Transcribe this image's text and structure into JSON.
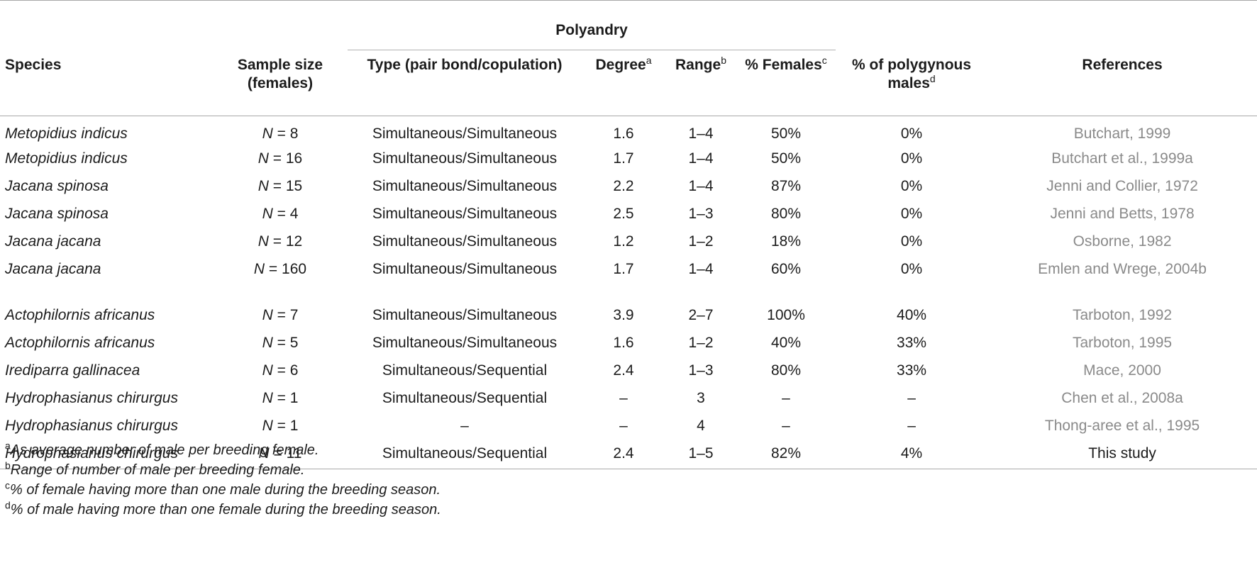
{
  "headers": {
    "polyandry": "Polyandry",
    "species": "Species",
    "sample_size": "Sample size (females)",
    "type": "Type (pair bond/copulation)",
    "degree": "Degree",
    "degree_sup": "a",
    "range": "Range",
    "range_sup": "b",
    "females": "% Females",
    "females_sup": "c",
    "polygynous": "% of polygynous males",
    "polygynous_sup": "d",
    "references": "References"
  },
  "rows": [
    {
      "species": "Metopidius indicus",
      "n": "N",
      "sample": " = 8",
      "type": "Simultaneous/Simultaneous",
      "degree": "1.6",
      "range": "1–4",
      "females": "50%",
      "polygynous": "0%",
      "ref": "Butchart, 1999"
    },
    {
      "species": "Metopidius indicus",
      "n": "N",
      "sample": " = 16",
      "type": "Simultaneous/Simultaneous",
      "degree": "1.7",
      "range": "1–4",
      "females": "50%",
      "polygynous": "0%",
      "ref": "Butchart et al., 1999a"
    },
    {
      "species": "Jacana spinosa",
      "n": "N",
      "sample": " = 15",
      "type": "Simultaneous/Simultaneous",
      "degree": "2.2",
      "range": "1–4",
      "females": "87%",
      "polygynous": "0%",
      "ref": "Jenni and Collier, 1972"
    },
    {
      "species": "Jacana spinosa",
      "n": "N",
      "sample": " = 4",
      "type": "Simultaneous/Simultaneous",
      "degree": "2.5",
      "range": "1–3",
      "females": "80%",
      "polygynous": "0%",
      "ref": "Jenni and Betts, 1978"
    },
    {
      "species": "Jacana jacana",
      "n": "N",
      "sample": " = 12",
      "type": "Simultaneous/Simultaneous",
      "degree": "1.2",
      "range": "1–2",
      "females": "18%",
      "polygynous": "0%",
      "ref": "Osborne, 1982"
    },
    {
      "species": "Jacana jacana",
      "n": "N",
      "sample": " = 160",
      "type": "Simultaneous/Simultaneous",
      "degree": "1.7",
      "range": "1–4",
      "females": "60%",
      "polygynous": "0%",
      "ref": "Emlen and Wrege, 2004b"
    },
    {
      "species": "Actophilornis africanus",
      "n": "N",
      "sample": " = 7",
      "type": "Simultaneous/Simultaneous",
      "degree": "3.9",
      "range": "2–7",
      "females": "100%",
      "polygynous": "40%",
      "ref": "Tarboton, 1992"
    },
    {
      "species": "Actophilornis africanus",
      "n": "N",
      "sample": " = 5",
      "type": "Simultaneous/Simultaneous",
      "degree": "1.6",
      "range": "1–2",
      "females": "40%",
      "polygynous": "33%",
      "ref": "Tarboton, 1995"
    },
    {
      "species": "Irediparra gallinacea",
      "n": "N",
      "sample": " = 6",
      "type": "Simultaneous/Sequential",
      "degree": "2.4",
      "range": "1–3",
      "females": "80%",
      "polygynous": "33%",
      "ref": "Mace, 2000"
    },
    {
      "species": "Hydrophasianus chirurgus",
      "n": "N",
      "sample": " = 1",
      "type": "Simultaneous/Sequential",
      "degree": "–",
      "range": "3",
      "females": "–",
      "polygynous": "–",
      "ref": "Chen et al., 2008a"
    },
    {
      "species": "Hydrophasianus chirurgus",
      "n": "N",
      "sample": " = 1",
      "type": "–",
      "degree": "–",
      "range": "4",
      "females": "–",
      "polygynous": "–",
      "ref": "Thong-aree et al., 1995"
    },
    {
      "species": "Hydrophasianus chirurgus",
      "n": "N",
      "sample": " = 11",
      "type": "Simultaneous/Sequential",
      "degree": "2.4",
      "range": "1–5",
      "females": "82%",
      "polygynous": "4%",
      "ref": "This study"
    }
  ],
  "footnotes": [
    {
      "mark": "a",
      "text": "As average number of male per breeding female."
    },
    {
      "mark": "b",
      "text": "Range of number of male per breeding female."
    },
    {
      "mark": "c",
      "text": "% of female having more than one male during the breeding season."
    },
    {
      "mark": "d",
      "text": "% of male having more than one female during the breeding season."
    }
  ]
}
